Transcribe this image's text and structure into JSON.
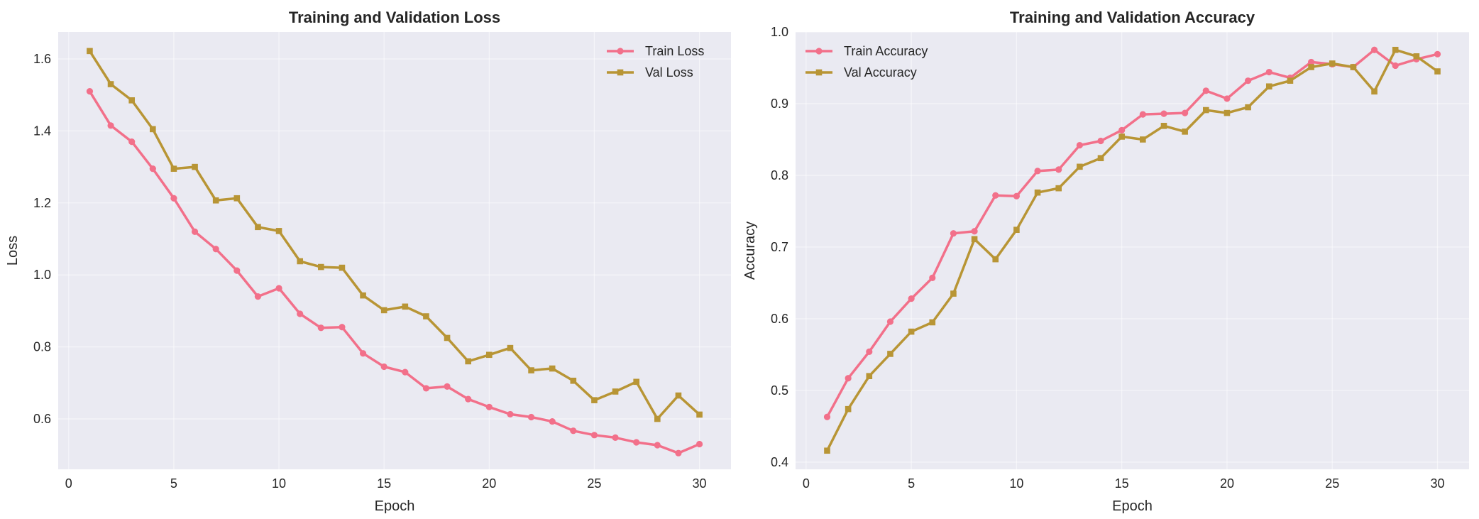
{
  "chart_data": [
    {
      "type": "line",
      "title": "Training and Validation Loss",
      "xlabel": "Epoch",
      "ylabel": "Loss",
      "xlim": [
        -0.5,
        31.5
      ],
      "ylim": [
        0.46,
        1.675
      ],
      "xticks": [
        0,
        5,
        10,
        15,
        20,
        25,
        30
      ],
      "yticks": [
        0.6,
        0.8,
        1.0,
        1.2,
        1.4,
        1.6
      ],
      "ytick_labels": [
        "0.6",
        "0.8",
        "1.0",
        "1.2",
        "1.4",
        "1.6"
      ],
      "grid": true,
      "legend_position": "upper right",
      "x": [
        1,
        2,
        3,
        4,
        5,
        6,
        7,
        8,
        9,
        10,
        11,
        12,
        13,
        14,
        15,
        16,
        17,
        18,
        19,
        20,
        21,
        22,
        23,
        24,
        25,
        26,
        27,
        28,
        29,
        30
      ],
      "series": [
        {
          "name": "Train Loss",
          "color": "#f2708a",
          "marker": "circle",
          "values": [
            1.51,
            1.415,
            1.37,
            1.295,
            1.213,
            1.12,
            1.072,
            1.012,
            0.94,
            0.963,
            0.892,
            0.853,
            0.855,
            0.782,
            0.745,
            0.73,
            0.685,
            0.69,
            0.655,
            0.633,
            0.613,
            0.605,
            0.593,
            0.567,
            0.555,
            0.548,
            0.535,
            0.527,
            0.505,
            0.53
          ]
        },
        {
          "name": "Val Loss",
          "color": "#b89535",
          "marker": "square",
          "values": [
            1.622,
            1.53,
            1.485,
            1.405,
            1.295,
            1.3,
            1.207,
            1.213,
            1.133,
            1.122,
            1.038,
            1.022,
            1.02,
            0.943,
            0.902,
            0.912,
            0.885,
            0.825,
            0.76,
            0.778,
            0.797,
            0.735,
            0.74,
            0.706,
            0.652,
            0.676,
            0.703,
            0.6,
            0.665,
            0.612
          ]
        }
      ]
    },
    {
      "type": "line",
      "title": "Training and Validation Accuracy",
      "xlabel": "Epoch",
      "ylabel": "Accuracy",
      "xlim": [
        -0.5,
        31.5
      ],
      "ylim": [
        0.39,
        1.0
      ],
      "xticks": [
        0,
        5,
        10,
        15,
        20,
        25,
        30
      ],
      "yticks": [
        0.4,
        0.5,
        0.6,
        0.7,
        0.8,
        0.9,
        1.0
      ],
      "ytick_labels": [
        "0.4",
        "0.5",
        "0.6",
        "0.7",
        "0.8",
        "0.9",
        "1.0"
      ],
      "grid": true,
      "legend_position": "upper left",
      "x": [
        1,
        2,
        3,
        4,
        5,
        6,
        7,
        8,
        9,
        10,
        11,
        12,
        13,
        14,
        15,
        16,
        17,
        18,
        19,
        20,
        21,
        22,
        23,
        24,
        25,
        26,
        27,
        28,
        29,
        30
      ],
      "series": [
        {
          "name": "Train Accuracy",
          "color": "#f2708a",
          "marker": "circle",
          "values": [
            0.463,
            0.517,
            0.554,
            0.596,
            0.628,
            0.657,
            0.719,
            0.722,
            0.772,
            0.771,
            0.806,
            0.808,
            0.842,
            0.848,
            0.863,
            0.885,
            0.886,
            0.887,
            0.918,
            0.907,
            0.932,
            0.944,
            0.936,
            0.958,
            0.955,
            0.951,
            0.975,
            0.953,
            0.962,
            0.969
          ]
        },
        {
          "name": "Val Accuracy",
          "color": "#b89535",
          "marker": "square",
          "values": [
            0.416,
            0.474,
            0.52,
            0.551,
            0.582,
            0.595,
            0.635,
            0.711,
            0.683,
            0.724,
            0.776,
            0.782,
            0.812,
            0.824,
            0.854,
            0.85,
            0.869,
            0.861,
            0.891,
            0.887,
            0.895,
            0.924,
            0.932,
            0.951,
            0.956,
            0.951,
            0.917,
            0.975,
            0.966,
            0.945
          ]
        }
      ]
    }
  ],
  "colors": {
    "background": "#ffffff",
    "plot_background": "#eaeaf2",
    "grid": "#ffffff",
    "text": "#262626"
  }
}
